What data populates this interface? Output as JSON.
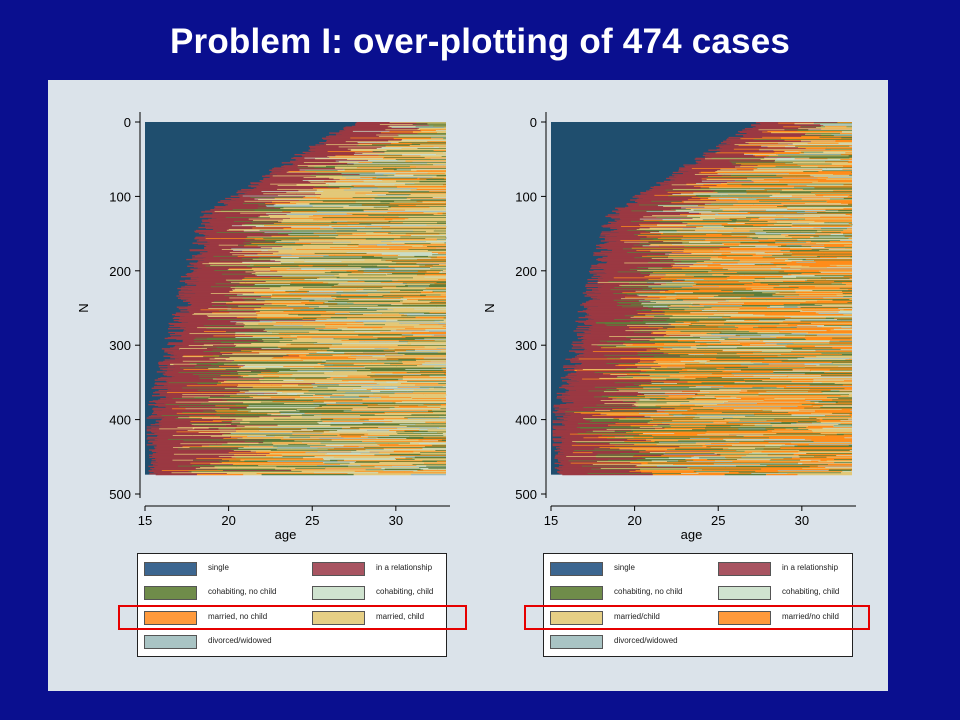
{
  "slide": {
    "title": "Problem I: over-plotting of 474 cases",
    "colors": {
      "background": "#0a0f8f",
      "panel": "#dbe3ea",
      "highlight": "#e60000"
    }
  },
  "chart_data": [
    {
      "type": "heatmap",
      "subtype": "sequence index plot",
      "title": "",
      "xlabel": "age",
      "ylabel": "N",
      "xlim": [
        15,
        33
      ],
      "ylim": [
        0,
        500
      ],
      "y_inverted": true,
      "n_cases": 474,
      "xticks": [
        15,
        20,
        25,
        30
      ],
      "yticks": [
        0,
        100,
        200,
        300,
        400,
        500
      ],
      "grid": false,
      "legend_position": "bottom",
      "draw_order": [
        "married, no child",
        "married, child"
      ],
      "states": [
        {
          "name": "single",
          "color": "#1f4e6e"
        },
        {
          "name": "in a relationship",
          "color": "#9b3942"
        },
        {
          "name": "cohabiting, no child",
          "color": "#5e7d3a"
        },
        {
          "name": "cohabiting, child",
          "color": "#c8dcc8"
        },
        {
          "name": "married, no child",
          "color": "#ff8c1a"
        },
        {
          "name": "married, child",
          "color": "#e3c878"
        },
        {
          "name": "divorced/widowed",
          "color": "#9fbcbc"
        }
      ],
      "legend": [
        {
          "label": "single",
          "color": "#3c6690"
        },
        {
          "label": "in a relationship",
          "color": "#a85461"
        },
        {
          "label": "cohabiting, no child",
          "color": "#6f8c4a"
        },
        {
          "label": "cohabiting, child",
          "color": "#cfe3cf"
        },
        {
          "label": "married, no child",
          "color": "#ff9a3c"
        },
        {
          "label": "married, child",
          "color": "#e6cf85"
        },
        {
          "label": "divorced/widowed",
          "color": "#a9c4c4"
        }
      ]
    },
    {
      "type": "heatmap",
      "subtype": "sequence index plot",
      "title": "",
      "xlabel": "age",
      "ylabel": "N",
      "xlim": [
        15,
        33
      ],
      "ylim": [
        0,
        500
      ],
      "y_inverted": true,
      "n_cases": 474,
      "xticks": [
        15,
        20,
        25,
        30
      ],
      "yticks": [
        0,
        100,
        200,
        300,
        400,
        500
      ],
      "grid": false,
      "legend_position": "bottom",
      "draw_order": [
        "married/child",
        "married/no child"
      ],
      "states": [
        {
          "name": "single",
          "color": "#1f4e6e"
        },
        {
          "name": "in a relationship",
          "color": "#9b3942"
        },
        {
          "name": "cohabiting, no child",
          "color": "#5e7d3a"
        },
        {
          "name": "cohabiting, child",
          "color": "#c8dcc8"
        },
        {
          "name": "married/child",
          "color": "#e3c878"
        },
        {
          "name": "married/no child",
          "color": "#ff8c1a"
        },
        {
          "name": "divorced/widowed",
          "color": "#9fbcbc"
        }
      ],
      "legend": [
        {
          "label": "single",
          "color": "#3c6690"
        },
        {
          "label": "in a relationship",
          "color": "#a85461"
        },
        {
          "label": "cohabiting, no child",
          "color": "#6f8c4a"
        },
        {
          "label": "cohabiting, child",
          "color": "#cfe3cf"
        },
        {
          "label": "married/child",
          "color": "#e6cf85"
        },
        {
          "label": "married/no child",
          "color": "#ff9a3c"
        },
        {
          "label": "divorced/widowed",
          "color": "#a9c4c4"
        }
      ]
    }
  ]
}
